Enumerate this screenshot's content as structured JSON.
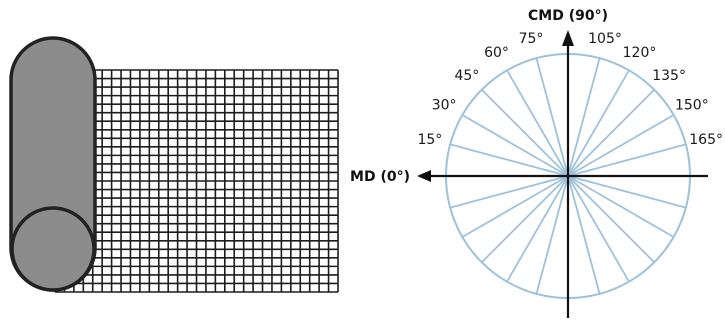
{
  "colors": {
    "mesh": "#1c1c1c",
    "roll_fill": "#8c8c8c",
    "roll_stroke": "#222222",
    "circle": "#9ec2dd",
    "axis": "#111111"
  },
  "left_figure": {
    "description_icon": "rolled-mesh-icon",
    "mesh_columns": 30,
    "mesh_rows": 26
  },
  "polar": {
    "md_label": "MD (0°)",
    "cmd_label": "CMD (90°)",
    "angle_step_deg": 15,
    "angle_labels": [
      "15°",
      "30°",
      "45°",
      "60°",
      "75°",
      "105°",
      "120°",
      "135°",
      "150°",
      "165°"
    ]
  }
}
